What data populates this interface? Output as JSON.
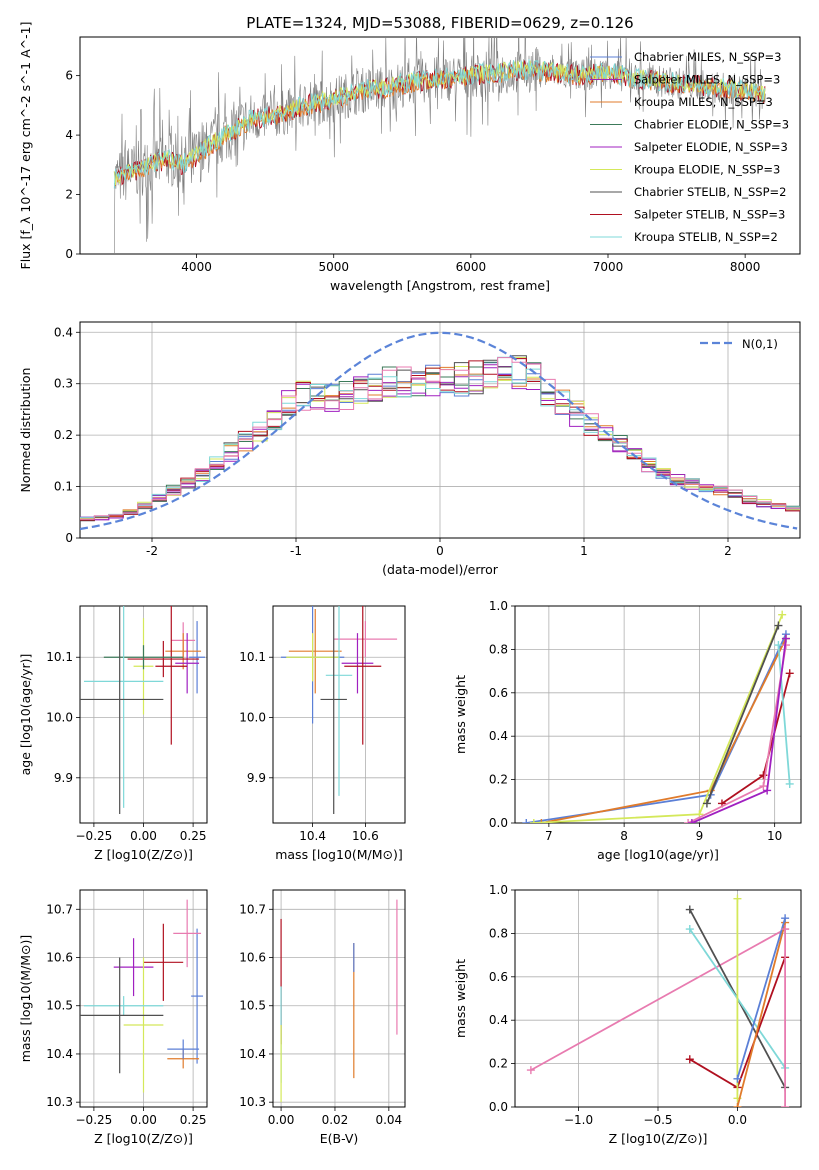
{
  "figure": {
    "title": "PLATE=1324, MJD=53088, FIBERID=0629, z=0.126"
  },
  "colors": {
    "chabrier_miles": "#5b7fd6",
    "salpeter_miles": "#9c27b0",
    "kroupa_miles": "#e07b2b",
    "chabrier_elodie": "#3c7a5a",
    "salpeter_elodie": "#a020c0",
    "kroupa_elodie": "#d4e85a",
    "chabrier_stelib": "#505050",
    "salpeter_stelib": "#b01020",
    "kroupa_stelib": "#7fd8d8",
    "pink": "#e87bb0",
    "gaussian": "#5b84d8",
    "data_gray": "#808080"
  },
  "chart_data": [
    {
      "id": "spectrum",
      "type": "line",
      "xlabel": "wavelength [Angstrom, rest frame]",
      "ylabel": "Flux [f_λ 10^-17 erg cm^-2 s^-1 A^-1]",
      "xlim": [
        3150,
        8400
      ],
      "ylim": [
        0,
        7.3
      ],
      "xticks": [
        4000,
        5000,
        6000,
        7000,
        8000
      ],
      "yticks": [
        0,
        2,
        4,
        6
      ],
      "grid": false,
      "legend_position": "top-right",
      "legend": [
        {
          "label": "Chabrier MILES, N_SSP=3",
          "color_key": "chabrier_miles"
        },
        {
          "label": "Salpeter MILES, N_SSP=3",
          "color_key": "salpeter_miles"
        },
        {
          "label": "Kroupa MILES, N_SSP=3",
          "color_key": "kroupa_miles"
        },
        {
          "label": "Chabrier ELODIE, N_SSP=3",
          "color_key": "chabrier_elodie"
        },
        {
          "label": "Salpeter ELODIE, N_SSP=3",
          "color_key": "salpeter_elodie"
        },
        {
          "label": "Kroupa ELODIE, N_SSP=3",
          "color_key": "kroupa_elodie"
        },
        {
          "label": "Chabrier STELIB, N_SSP=2",
          "color_key": "chabrier_stelib"
        },
        {
          "label": "Salpeter STELIB, N_SSP=3",
          "color_key": "salpeter_stelib"
        },
        {
          "label": "Kroupa STELIB, N_SSP=2",
          "color_key": "kroupa_stelib"
        }
      ],
      "continuum": {
        "x": [
          3400,
          3600,
          3800,
          3900,
          4000,
          4200,
          4400,
          4600,
          4800,
          5000,
          5200,
          5400,
          5600,
          5800,
          6000,
          6200,
          6400,
          6600,
          6800,
          7000,
          7200,
          7400,
          7600,
          7800,
          8000,
          8150
        ],
        "y": [
          2.5,
          2.9,
          3.2,
          3.0,
          3.3,
          4.0,
          4.5,
          4.7,
          5.0,
          5.2,
          5.5,
          5.6,
          5.8,
          5.9,
          6.0,
          6.1,
          6.2,
          6.1,
          6.0,
          6.1,
          5.9,
          5.8,
          5.7,
          5.6,
          5.5,
          5.4
        ]
      }
    },
    {
      "id": "residuals",
      "type": "line",
      "xlabel": "(data-model)/error",
      "ylabel": "Normed distribution",
      "xlim": [
        -2.5,
        2.5
      ],
      "ylim": [
        0,
        0.42
      ],
      "xticks": [
        -2,
        -1,
        0,
        1,
        2
      ],
      "yticks": [
        0.0,
        0.1,
        0.2,
        0.3,
        0.4
      ],
      "grid": true,
      "legend_position": "top-right",
      "legend": [
        {
          "label": "N(0,1)",
          "color_key": "gaussian"
        }
      ],
      "histogram_envelope": {
        "x": [
          -2.5,
          -2.2,
          -2.0,
          -1.8,
          -1.6,
          -1.4,
          -1.2,
          -1.0,
          -0.8,
          -0.6,
          -0.4,
          -0.2,
          0.0,
          0.2,
          0.4,
          0.6,
          0.8,
          1.0,
          1.2,
          1.4,
          1.6,
          1.8,
          2.0,
          2.2,
          2.5
        ],
        "y": [
          0.035,
          0.045,
          0.07,
          0.1,
          0.13,
          0.18,
          0.22,
          0.28,
          0.27,
          0.28,
          0.3,
          0.3,
          0.31,
          0.31,
          0.32,
          0.32,
          0.27,
          0.23,
          0.19,
          0.15,
          0.12,
          0.1,
          0.09,
          0.07,
          0.055
        ]
      }
    },
    {
      "id": "age_vs_Z",
      "type": "scatter",
      "xlabel": "Z [log10(Z/Z⊙)]",
      "ylabel": "age [log10(age/yr)]",
      "xlim": [
        -0.32,
        0.32
      ],
      "ylim": [
        9.825,
        10.185
      ],
      "xticks": [
        -0.25,
        0.0,
        0.25
      ],
      "xticklabels": [
        "−0.25",
        "0.00",
        "0.25"
      ],
      "yticks": [
        9.9,
        10.0,
        10.1
      ],
      "yticklabels": [
        "9.9",
        "10.0",
        "10.1"
      ],
      "grid": true,
      "errorbars": [
        {
          "x": 0.27,
          "y": 10.1,
          "xerr": 0.04,
          "yerr": 0.06,
          "color_key": "chabrier_miles"
        },
        {
          "x": 0.2,
          "y": 10.128,
          "xerr": 0.06,
          "yerr": 0.03,
          "color_key": "pink"
        },
        {
          "x": 0.2,
          "y": 10.11,
          "xerr": 0.09,
          "yerr": 0.03,
          "color_key": "kroupa_miles"
        },
        {
          "x": 0.22,
          "y": 10.09,
          "xerr": 0.06,
          "yerr": 0.05,
          "color_key": "salpeter_elodie"
        },
        {
          "x": 0.0,
          "y": 10.085,
          "xerr": 0.05,
          "yerr": 0.08,
          "color_key": "kroupa_elodie"
        },
        {
          "x": 0.1,
          "y": 10.097,
          "xerr": 0.18,
          "yerr": 0.03,
          "color_key": "salpeter_stelib"
        },
        {
          "x": 0.14,
          "y": 10.085,
          "xerr": 0.08,
          "yerr": 0.13,
          "color_key": "salpeter_stelib"
        },
        {
          "x": 0.0,
          "y": 10.1,
          "xerr": 0.2,
          "yerr": 0.02,
          "color_key": "chabrier_elodie"
        },
        {
          "x": -0.1,
          "y": 10.06,
          "xerr": 0.2,
          "yerr": 0.21,
          "color_key": "kroupa_stelib"
        },
        {
          "x": -0.12,
          "y": 10.03,
          "xerr": 0.22,
          "yerr": 0.19,
          "color_key": "chabrier_stelib"
        }
      ]
    },
    {
      "id": "age_vs_mass",
      "type": "scatter",
      "xlabel": "mass [log10(M/M⊙)]",
      "xlim": [
        10.25,
        10.75
      ],
      "ylim": [
        9.825,
        10.185
      ],
      "xticks": [
        10.4,
        10.6
      ],
      "yticks": [
        9.9,
        10.0,
        10.1
      ],
      "yticklabels": [
        "9.9",
        "10.0",
        "10.1"
      ],
      "grid": true,
      "errorbars": [
        {
          "x": 10.6,
          "y": 10.13,
          "xerr": 0.12,
          "yerr": 0.03,
          "color_key": "pink"
        },
        {
          "x": 10.41,
          "y": 10.11,
          "xerr": 0.1,
          "yerr": 0.07,
          "color_key": "kroupa_miles"
        },
        {
          "x": 10.4,
          "y": 10.1,
          "xerr": 0.12,
          "yerr": 0.11,
          "color_key": "chabrier_miles"
        },
        {
          "x": 10.57,
          "y": 10.09,
          "xerr": 0.06,
          "yerr": 0.05,
          "color_key": "salpeter_elodie"
        },
        {
          "x": 10.59,
          "y": 10.085,
          "xerr": 0.07,
          "yerr": 0.13,
          "color_key": "salpeter_stelib"
        },
        {
          "x": 10.4,
          "y": 10.1,
          "xerr": 0.1,
          "yerr": 0.04,
          "color_key": "kroupa_elodie"
        },
        {
          "x": 10.5,
          "y": 10.07,
          "xerr": 0.05,
          "yerr": 0.2,
          "color_key": "kroupa_stelib"
        },
        {
          "x": 10.48,
          "y": 10.03,
          "xerr": 0.05,
          "yerr": 0.19,
          "color_key": "chabrier_stelib"
        }
      ]
    },
    {
      "id": "weight_vs_age",
      "type": "line",
      "xlabel": "age [log10(age/yr)]",
      "ylabel": "mass weight",
      "xlim": [
        6.55,
        10.35
      ],
      "ylim": [
        0,
        1
      ],
      "xticks": [
        7,
        8,
        9,
        10
      ],
      "yticks": [
        0.0,
        0.2,
        0.4,
        0.6,
        0.8,
        1.0
      ],
      "yticklabels": [
        "0.0",
        "0.2",
        "0.4",
        "0.6",
        "0.8",
        "1.0"
      ],
      "grid": true,
      "series": [
        {
          "color_key": "chabrier_miles",
          "x": [
            6.7,
            9.15,
            10.15
          ],
          "y": [
            0.0,
            0.13,
            0.87
          ]
        },
        {
          "color_key": "kroupa_miles",
          "x": [
            6.9,
            9.15,
            10.15
          ],
          "y": [
            0.0,
            0.15,
            0.85
          ]
        },
        {
          "color_key": "kroupa_elodie",
          "x": [
            6.8,
            9.0,
            10.1
          ],
          "y": [
            0.0,
            0.04,
            0.96
          ]
        },
        {
          "color_key": "chabrier_stelib",
          "x": [
            9.1,
            10.05
          ],
          "y": [
            0.09,
            0.91
          ]
        },
        {
          "color_key": "salpeter_stelib",
          "x": [
            9.3,
            9.85,
            10.2
          ],
          "y": [
            0.09,
            0.22,
            0.69
          ]
        },
        {
          "color_key": "kroupa_stelib",
          "x": [
            10.05,
            10.2
          ],
          "y": [
            0.82,
            0.18
          ]
        },
        {
          "color_key": "pink",
          "x": [
            8.85,
            9.85,
            10.15
          ],
          "y": [
            0.0,
            0.17,
            0.82
          ]
        },
        {
          "color_key": "salpeter_elodie",
          "x": [
            8.9,
            9.9,
            10.15
          ],
          "y": [
            0.0,
            0.15,
            0.85
          ]
        }
      ]
    },
    {
      "id": "mass_vs_Z",
      "type": "scatter",
      "xlabel": "Z [log10(Z/Z⊙)]",
      "ylabel": "mass [log10(M/M⊙)]",
      "xlim": [
        -0.32,
        0.32
      ],
      "ylim": [
        10.29,
        10.74
      ],
      "xticks": [
        -0.25,
        0.0,
        0.25
      ],
      "xticklabels": [
        "−0.25",
        "0.00",
        "0.25"
      ],
      "yticks": [
        10.3,
        10.4,
        10.5,
        10.6,
        10.7
      ],
      "grid": true,
      "errorbars": [
        {
          "x": 0.27,
          "y": 10.52,
          "xerr": 0.03,
          "yerr": 0.14,
          "color_key": "chabrier_miles"
        },
        {
          "x": 0.22,
          "y": 10.65,
          "xerr": 0.07,
          "yerr": 0.07,
          "color_key": "pink"
        },
        {
          "x": 0.2,
          "y": 10.39,
          "xerr": 0.08,
          "yerr": 0.02,
          "color_key": "kroupa_miles"
        },
        {
          "x": 0.2,
          "y": 10.41,
          "xerr": 0.08,
          "yerr": 0.02,
          "color_key": "chabrier_miles"
        },
        {
          "x": -0.05,
          "y": 10.58,
          "xerr": 0.1,
          "yerr": 0.06,
          "color_key": "salpeter_elodie"
        },
        {
          "x": 0.1,
          "y": 10.59,
          "xerr": 0.1,
          "yerr": 0.08,
          "color_key": "salpeter_stelib"
        },
        {
          "x": 0.0,
          "y": 10.46,
          "xerr": 0.1,
          "yerr": 0.14,
          "color_key": "kroupa_elodie"
        },
        {
          "x": -0.1,
          "y": 10.5,
          "xerr": 0.2,
          "yerr": 0.02,
          "color_key": "kroupa_stelib"
        },
        {
          "x": -0.12,
          "y": 10.48,
          "xerr": 0.22,
          "yerr": 0.12,
          "color_key": "chabrier_stelib"
        }
      ]
    },
    {
      "id": "mass_vs_ebv",
      "type": "scatter",
      "xlabel": "E(B-V)",
      "xlim": [
        -0.003,
        0.046
      ],
      "ylim": [
        10.29,
        10.74
      ],
      "xticks": [
        0.0,
        0.02,
        0.04
      ],
      "xticklabels": [
        "0.00",
        "0.02",
        "0.04"
      ],
      "yticks": [
        10.3,
        10.4,
        10.5,
        10.6,
        10.7
      ],
      "grid": true,
      "errorbars": [
        {
          "x": 0.0,
          "y": 10.55,
          "xerr": 0.0,
          "yerr": 0.13,
          "color_key": "salpeter_stelib"
        },
        {
          "x": 0.0,
          "y": 10.44,
          "xerr": 0.0,
          "yerr": 0.1,
          "color_key": "kroupa_stelib"
        },
        {
          "x": 0.0,
          "y": 10.38,
          "xerr": 0.0,
          "yerr": 0.08,
          "color_key": "kroupa_elodie"
        },
        {
          "x": 0.027,
          "y": 10.49,
          "xerr": 0.0,
          "yerr": 0.14,
          "color_key": "kroupa_miles"
        },
        {
          "x": 0.027,
          "y": 10.6,
          "xerr": 0.0,
          "yerr": 0.03,
          "color_key": "chabrier_miles"
        },
        {
          "x": 0.043,
          "y": 10.58,
          "xerr": 0.0,
          "yerr": 0.14,
          "color_key": "pink"
        }
      ]
    },
    {
      "id": "weight_vs_Z",
      "type": "line",
      "xlabel": "Z [log10(Z/Z⊙)]",
      "ylabel": "mass weight",
      "xlim": [
        -1.4,
        0.4
      ],
      "ylim": [
        0,
        1
      ],
      "xticks": [
        -1.0,
        -0.5,
        0.0
      ],
      "xticklabels": [
        "−1.0",
        "−0.5",
        "0.0"
      ],
      "yticks": [
        0.0,
        0.2,
        0.4,
        0.6,
        0.8,
        1.0
      ],
      "yticklabels": [
        "0.0",
        "0.2",
        "0.4",
        "0.6",
        "0.8",
        "1.0"
      ],
      "grid": true,
      "series": [
        {
          "color_key": "pink",
          "x": [
            -1.3,
            0.3
          ],
          "y": [
            0.17,
            0.82
          ]
        },
        {
          "color_key": "chabrier_stelib",
          "x": [
            -0.3,
            0.3
          ],
          "y": [
            0.91,
            0.09
          ]
        },
        {
          "color_key": "kroupa_stelib",
          "x": [
            -0.3,
            0.3
          ],
          "y": [
            0.82,
            0.18
          ]
        },
        {
          "color_key": "salpeter_stelib",
          "x": [
            -0.3,
            0.0,
            0.3
          ],
          "y": [
            0.22,
            0.09,
            0.69
          ]
        },
        {
          "color_key": "kroupa_elodie",
          "x": [
            0.0,
            0.0
          ],
          "y": [
            0.04,
            0.96
          ]
        },
        {
          "color_key": "kroupa_miles",
          "x": [
            0.0,
            0.3
          ],
          "y": [
            0.0,
            0.85
          ]
        },
        {
          "color_key": "chabrier_miles",
          "x": [
            0.0,
            0.3
          ],
          "y": [
            0.13,
            0.87
          ]
        },
        {
          "color_key": "pink",
          "x": [
            0.3,
            0.3
          ],
          "y": [
            0.0,
            0.82
          ]
        }
      ]
    }
  ]
}
